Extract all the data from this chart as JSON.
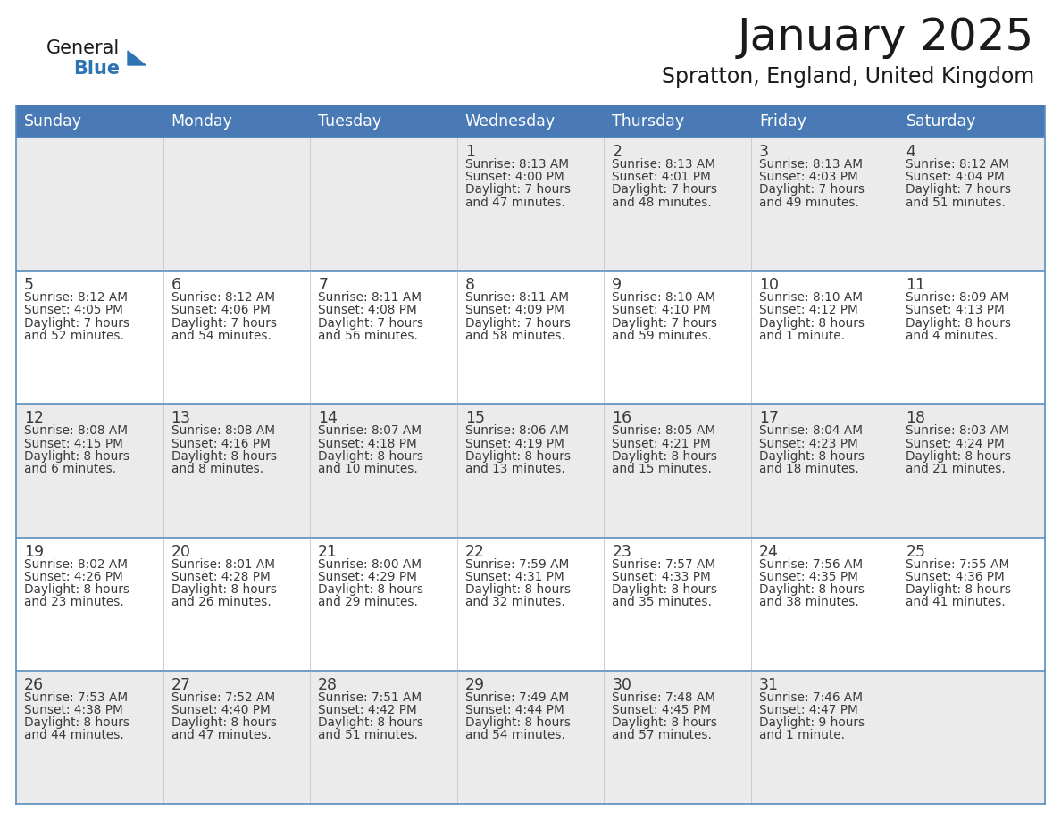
{
  "title": "January 2025",
  "subtitle": "Spratton, England, United Kingdom",
  "days_of_week": [
    "Sunday",
    "Monday",
    "Tuesday",
    "Wednesday",
    "Thursday",
    "Friday",
    "Saturday"
  ],
  "header_bg": "#4a7ab5",
  "header_text": "#FFFFFF",
  "row_bg_odd": "#EBEBEB",
  "row_bg_even": "#FFFFFF",
  "day_num_color": "#3a3a3a",
  "text_color": "#3a3a3a",
  "grid_color": "#5a8ec0",
  "title_color": "#1A1A1A",
  "logo_general_color": "#1A1A1A",
  "logo_blue_color": "#2E74B5",
  "calendar_data": [
    [
      null,
      null,
      null,
      {
        "day": 1,
        "sunrise": "8:13 AM",
        "sunset": "4:00 PM",
        "dl1": "Daylight: 7 hours",
        "dl2": "and 47 minutes."
      },
      {
        "day": 2,
        "sunrise": "8:13 AM",
        "sunset": "4:01 PM",
        "dl1": "Daylight: 7 hours",
        "dl2": "and 48 minutes."
      },
      {
        "day": 3,
        "sunrise": "8:13 AM",
        "sunset": "4:03 PM",
        "dl1": "Daylight: 7 hours",
        "dl2": "and 49 minutes."
      },
      {
        "day": 4,
        "sunrise": "8:12 AM",
        "sunset": "4:04 PM",
        "dl1": "Daylight: 7 hours",
        "dl2": "and 51 minutes."
      }
    ],
    [
      {
        "day": 5,
        "sunrise": "8:12 AM",
        "sunset": "4:05 PM",
        "dl1": "Daylight: 7 hours",
        "dl2": "and 52 minutes."
      },
      {
        "day": 6,
        "sunrise": "8:12 AM",
        "sunset": "4:06 PM",
        "dl1": "Daylight: 7 hours",
        "dl2": "and 54 minutes."
      },
      {
        "day": 7,
        "sunrise": "8:11 AM",
        "sunset": "4:08 PM",
        "dl1": "Daylight: 7 hours",
        "dl2": "and 56 minutes."
      },
      {
        "day": 8,
        "sunrise": "8:11 AM",
        "sunset": "4:09 PM",
        "dl1": "Daylight: 7 hours",
        "dl2": "and 58 minutes."
      },
      {
        "day": 9,
        "sunrise": "8:10 AM",
        "sunset": "4:10 PM",
        "dl1": "Daylight: 7 hours",
        "dl2": "and 59 minutes."
      },
      {
        "day": 10,
        "sunrise": "8:10 AM",
        "sunset": "4:12 PM",
        "dl1": "Daylight: 8 hours",
        "dl2": "and 1 minute."
      },
      {
        "day": 11,
        "sunrise": "8:09 AM",
        "sunset": "4:13 PM",
        "dl1": "Daylight: 8 hours",
        "dl2": "and 4 minutes."
      }
    ],
    [
      {
        "day": 12,
        "sunrise": "8:08 AM",
        "sunset": "4:15 PM",
        "dl1": "Daylight: 8 hours",
        "dl2": "and 6 minutes."
      },
      {
        "day": 13,
        "sunrise": "8:08 AM",
        "sunset": "4:16 PM",
        "dl1": "Daylight: 8 hours",
        "dl2": "and 8 minutes."
      },
      {
        "day": 14,
        "sunrise": "8:07 AM",
        "sunset": "4:18 PM",
        "dl1": "Daylight: 8 hours",
        "dl2": "and 10 minutes."
      },
      {
        "day": 15,
        "sunrise": "8:06 AM",
        "sunset": "4:19 PM",
        "dl1": "Daylight: 8 hours",
        "dl2": "and 13 minutes."
      },
      {
        "day": 16,
        "sunrise": "8:05 AM",
        "sunset": "4:21 PM",
        "dl1": "Daylight: 8 hours",
        "dl2": "and 15 minutes."
      },
      {
        "day": 17,
        "sunrise": "8:04 AM",
        "sunset": "4:23 PM",
        "dl1": "Daylight: 8 hours",
        "dl2": "and 18 minutes."
      },
      {
        "day": 18,
        "sunrise": "8:03 AM",
        "sunset": "4:24 PM",
        "dl1": "Daylight: 8 hours",
        "dl2": "and 21 minutes."
      }
    ],
    [
      {
        "day": 19,
        "sunrise": "8:02 AM",
        "sunset": "4:26 PM",
        "dl1": "Daylight: 8 hours",
        "dl2": "and 23 minutes."
      },
      {
        "day": 20,
        "sunrise": "8:01 AM",
        "sunset": "4:28 PM",
        "dl1": "Daylight: 8 hours",
        "dl2": "and 26 minutes."
      },
      {
        "day": 21,
        "sunrise": "8:00 AM",
        "sunset": "4:29 PM",
        "dl1": "Daylight: 8 hours",
        "dl2": "and 29 minutes."
      },
      {
        "day": 22,
        "sunrise": "7:59 AM",
        "sunset": "4:31 PM",
        "dl1": "Daylight: 8 hours",
        "dl2": "and 32 minutes."
      },
      {
        "day": 23,
        "sunrise": "7:57 AM",
        "sunset": "4:33 PM",
        "dl1": "Daylight: 8 hours",
        "dl2": "and 35 minutes."
      },
      {
        "day": 24,
        "sunrise": "7:56 AM",
        "sunset": "4:35 PM",
        "dl1": "Daylight: 8 hours",
        "dl2": "and 38 minutes."
      },
      {
        "day": 25,
        "sunrise": "7:55 AM",
        "sunset": "4:36 PM",
        "dl1": "Daylight: 8 hours",
        "dl2": "and 41 minutes."
      }
    ],
    [
      {
        "day": 26,
        "sunrise": "7:53 AM",
        "sunset": "4:38 PM",
        "dl1": "Daylight: 8 hours",
        "dl2": "and 44 minutes."
      },
      {
        "day": 27,
        "sunrise": "7:52 AM",
        "sunset": "4:40 PM",
        "dl1": "Daylight: 8 hours",
        "dl2": "and 47 minutes."
      },
      {
        "day": 28,
        "sunrise": "7:51 AM",
        "sunset": "4:42 PM",
        "dl1": "Daylight: 8 hours",
        "dl2": "and 51 minutes."
      },
      {
        "day": 29,
        "sunrise": "7:49 AM",
        "sunset": "4:44 PM",
        "dl1": "Daylight: 8 hours",
        "dl2": "and 54 minutes."
      },
      {
        "day": 30,
        "sunrise": "7:48 AM",
        "sunset": "4:45 PM",
        "dl1": "Daylight: 8 hours",
        "dl2": "and 57 minutes."
      },
      {
        "day": 31,
        "sunrise": "7:46 AM",
        "sunset": "4:47 PM",
        "dl1": "Daylight: 9 hours",
        "dl2": "and 1 minute."
      },
      null
    ]
  ]
}
